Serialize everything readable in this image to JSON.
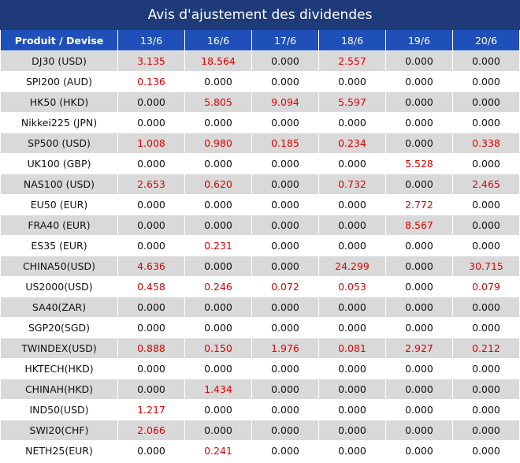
{
  "title": "Avis d'ajustement des dividendes",
  "header": {
    "product_label": "Produit / Devise",
    "dates": [
      "13/6",
      "16/6",
      "17/6",
      "18/6",
      "19/6",
      "20/6"
    ]
  },
  "colors": {
    "title_bg": "#1f3a78",
    "header_bg": "#1f4fb8",
    "stripe": "#d9d9d9",
    "positive_value": "#e00000"
  },
  "rows": [
    {
      "product": "DJ30 (USD)",
      "values": [
        "3.135",
        "18.564",
        "0.000",
        "2.557",
        "0.000",
        "0.000"
      ]
    },
    {
      "product": "SPI200 (AUD)",
      "values": [
        "0.136",
        "0.000",
        "0.000",
        "0.000",
        "0.000",
        "0.000"
      ]
    },
    {
      "product": "HK50 (HKD)",
      "values": [
        "0.000",
        "5.805",
        "9.094",
        "5.597",
        "0.000",
        "0.000"
      ]
    },
    {
      "product": "Nikkei225 (JPN)",
      "values": [
        "0.000",
        "0.000",
        "0.000",
        "0.000",
        "0.000",
        "0.000"
      ]
    },
    {
      "product": "SP500 (USD)",
      "values": [
        "1.008",
        "0.980",
        "0.185",
        "0.234",
        "0.000",
        "0.338"
      ]
    },
    {
      "product": "UK100 (GBP)",
      "values": [
        "0.000",
        "0.000",
        "0.000",
        "0.000",
        "5.528",
        "0.000"
      ]
    },
    {
      "product": "NAS100 (USD)",
      "values": [
        "2.653",
        "0.620",
        "0.000",
        "0.732",
        "0.000",
        "2.465"
      ]
    },
    {
      "product": "EU50 (EUR)",
      "values": [
        "0.000",
        "0.000",
        "0.000",
        "0.000",
        "2.772",
        "0.000"
      ]
    },
    {
      "product": "FRA40 (EUR)",
      "values": [
        "0.000",
        "0.000",
        "0.000",
        "0.000",
        "8.567",
        "0.000"
      ]
    },
    {
      "product": "ES35 (EUR)",
      "values": [
        "0.000",
        "0.231",
        "0.000",
        "0.000",
        "0.000",
        "0.000"
      ]
    },
    {
      "product": "CHINA50(USD)",
      "values": [
        "4.636",
        "0.000",
        "0.000",
        "24.299",
        "0.000",
        "30.715"
      ]
    },
    {
      "product": "US2000(USD)",
      "values": [
        "0.458",
        "0.246",
        "0.072",
        "0.053",
        "0.000",
        "0.079"
      ]
    },
    {
      "product": "SA40(ZAR)",
      "values": [
        "0.000",
        "0.000",
        "0.000",
        "0.000",
        "0.000",
        "0.000"
      ]
    },
    {
      "product": "SGP20(SGD)",
      "values": [
        "0.000",
        "0.000",
        "0.000",
        "0.000",
        "0.000",
        "0.000"
      ]
    },
    {
      "product": "TWINDEX(USD)",
      "values": [
        "0.888",
        "0.150",
        "1.976",
        "0.081",
        "2.927",
        "0.212"
      ]
    },
    {
      "product": "HKTECH(HKD)",
      "values": [
        "0.000",
        "0.000",
        "0.000",
        "0.000",
        "0.000",
        "0.000"
      ]
    },
    {
      "product": "CHINAH(HKD)",
      "values": [
        "0.000",
        "1.434",
        "0.000",
        "0.000",
        "0.000",
        "0.000"
      ]
    },
    {
      "product": "IND50(USD)",
      "values": [
        "1.217",
        "0.000",
        "0.000",
        "0.000",
        "0.000",
        "0.000"
      ]
    },
    {
      "product": "SWI20(CHF)",
      "values": [
        "2.066",
        "0.000",
        "0.000",
        "0.000",
        "0.000",
        "0.000"
      ]
    },
    {
      "product": "NETH25(EUR)",
      "values": [
        "0.000",
        "0.241",
        "0.000",
        "0.000",
        "0.000",
        "0.000"
      ]
    }
  ]
}
